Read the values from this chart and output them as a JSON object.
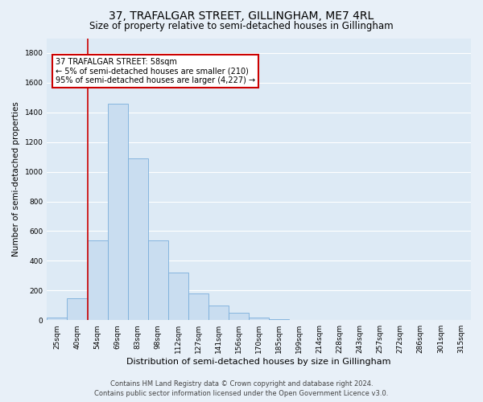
{
  "title": "37, TRAFALGAR STREET, GILLINGHAM, ME7 4RL",
  "subtitle": "Size of property relative to semi-detached houses in Gillingham",
  "xlabel": "Distribution of semi-detached houses by size in Gillingham",
  "ylabel": "Number of semi-detached properties",
  "categories": [
    "25sqm",
    "40sqm",
    "54sqm",
    "69sqm",
    "83sqm",
    "98sqm",
    "112sqm",
    "127sqm",
    "141sqm",
    "156sqm",
    "170sqm",
    "185sqm",
    "199sqm",
    "214sqm",
    "228sqm",
    "243sqm",
    "257sqm",
    "272sqm",
    "286sqm",
    "301sqm",
    "315sqm"
  ],
  "values": [
    20,
    150,
    540,
    1460,
    1090,
    540,
    320,
    180,
    100,
    50,
    20,
    5,
    2,
    1,
    0,
    0,
    0,
    0,
    0,
    0,
    0
  ],
  "bar_color": "#c9ddf0",
  "bar_edge_color": "#7aaedb",
  "annotation_text_line1": "37 TRAFALGAR STREET: 58sqm",
  "annotation_text_line2": "← 5% of semi-detached houses are smaller (210)",
  "annotation_text_line3": "95% of semi-detached houses are larger (4,227) →",
  "vline_bin_index": 2,
  "annotation_box_edge_color": "#cc0000",
  "ylim": [
    0,
    1900
  ],
  "yticks": [
    0,
    200,
    400,
    600,
    800,
    1000,
    1200,
    1400,
    1600,
    1800
  ],
  "footer_line1": "Contains HM Land Registry data © Crown copyright and database right 2024.",
  "footer_line2": "Contains public sector information licensed under the Open Government Licence v3.0.",
  "bg_color": "#e8f0f8",
  "plot_bg_color": "#ddeaf5",
  "grid_color": "#ffffff",
  "title_fontsize": 10,
  "subtitle_fontsize": 8.5,
  "ylabel_fontsize": 7.5,
  "xlabel_fontsize": 8,
  "tick_fontsize": 6.5,
  "annotation_fontsize": 7,
  "footer_fontsize": 6
}
